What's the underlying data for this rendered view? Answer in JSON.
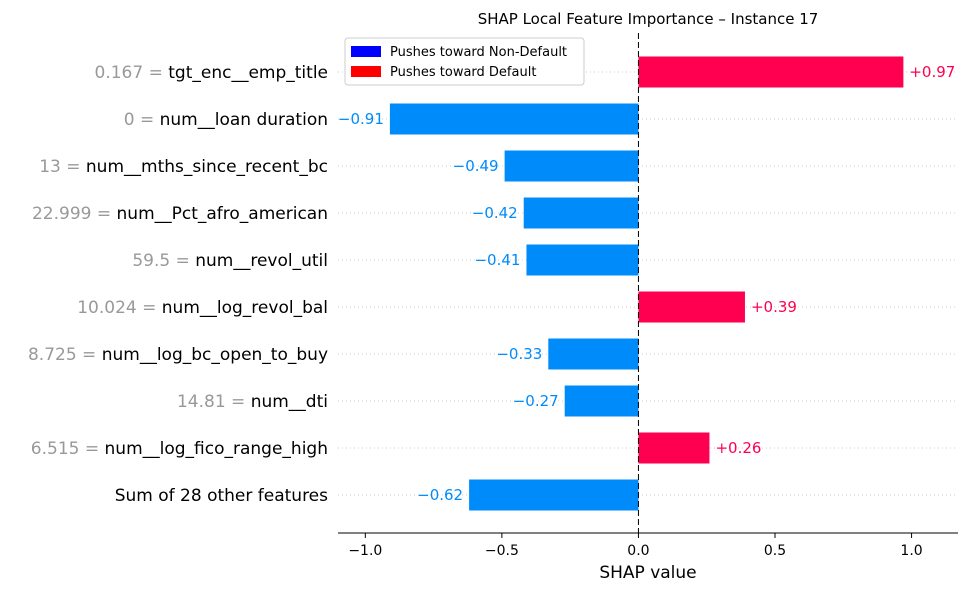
{
  "chart_data": {
    "type": "bar",
    "orientation": "horizontal",
    "title": "SHAP Local Feature Importance – Instance 17",
    "xlabel": "SHAP value",
    "ylabel": "",
    "xlim": [
      -1.1,
      1.17
    ],
    "xticks": [
      -1.0,
      -0.5,
      0.0,
      0.5,
      1.0
    ],
    "xtick_labels": [
      "−1.0",
      "−0.5",
      "0.0",
      "0.5",
      "1.0"
    ],
    "grid": "horizontal dotted",
    "legend_position": "top-left",
    "legend": [
      {
        "label": "Pushes toward Non-Default",
        "color": "#0000ff"
      },
      {
        "label": "Pushes toward Default",
        "color": "#ff0000"
      }
    ],
    "colors": {
      "positive": "#ff0051",
      "negative": "#008bfb"
    },
    "features": [
      {
        "value": "0.167",
        "name": "tgt_enc__emp_title",
        "shap": 0.97,
        "label": "+0.97"
      },
      {
        "value": "0",
        "name": "num__loan duration",
        "shap": -0.91,
        "label": "−0.91"
      },
      {
        "value": "13",
        "name": "num__mths_since_recent_bc",
        "shap": -0.49,
        "label": "−0.49"
      },
      {
        "value": "22.999",
        "name": "num__Pct_afro_american",
        "shap": -0.42,
        "label": "−0.42"
      },
      {
        "value": "59.5",
        "name": "num__revol_util",
        "shap": -0.41,
        "label": "−0.41"
      },
      {
        "value": "10.024",
        "name": "num__log_revol_bal",
        "shap": 0.39,
        "label": "+0.39"
      },
      {
        "value": "8.725",
        "name": "num__log_bc_open_to_buy",
        "shap": -0.33,
        "label": "−0.33"
      },
      {
        "value": "14.81",
        "name": "num__dti",
        "shap": -0.27,
        "label": "−0.27"
      },
      {
        "value": "6.515",
        "name": "num__log_fico_range_high",
        "shap": 0.26,
        "label": "+0.26"
      },
      {
        "value": "",
        "name": "Sum of 28 other features",
        "shap": -0.62,
        "label": "−0.62"
      }
    ]
  }
}
